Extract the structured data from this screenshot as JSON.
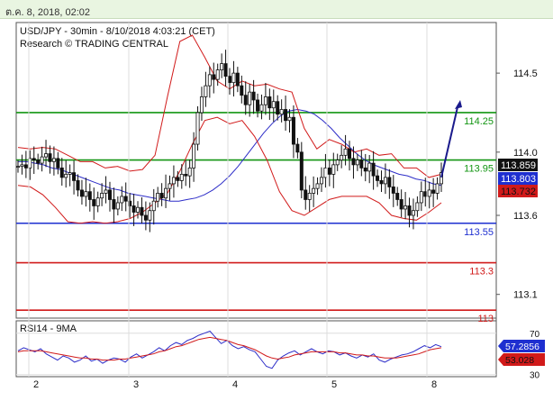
{
  "header": {
    "timestamp": "ต.ค. 8, 2018, 02:02"
  },
  "chart_data": [
    {
      "type": "candlestick",
      "title": "USD/JPY - 30min - 8/10/2018 4:03:21 (CET)",
      "subtitle": "Research © TRADING CENTRAL",
      "ylim": [
        112.95,
        114.82
      ],
      "x_tick_labels": [
        "2",
        "3",
        "4",
        "5",
        "8"
      ],
      "y_tick_labels": [
        {
          "value": 114.5,
          "label": "114.5"
        },
        {
          "value": 114.0,
          "label": "114.0"
        },
        {
          "value": 113.6,
          "label": "113.6"
        },
        {
          "value": 113.1,
          "label": "113.1"
        }
      ],
      "levels": [
        {
          "value": 114.25,
          "label": "114.25",
          "color": "#129512"
        },
        {
          "value": 113.95,
          "label": "113.95",
          "color": "#129512"
        },
        {
          "value": 113.55,
          "label": "113.55",
          "color": "#1e2fd0"
        },
        {
          "value": 113.3,
          "label": "113.3",
          "color": "#d11a1a"
        },
        {
          "value": 113.0,
          "label": "113",
          "color": "#d11a1a"
        }
      ],
      "price_tags": [
        {
          "value": 113.859,
          "label": "113.859",
          "bg": "#111111",
          "fg": "#ffffff"
        },
        {
          "value": 113.803,
          "label": "113.803",
          "bg": "#1e2fd0",
          "fg": "#ffffff"
        },
        {
          "value": 113.732,
          "label": "113.732",
          "bg": "#d11a1a",
          "fg": "#111111"
        }
      ],
      "closes": [
        113.91,
        113.92,
        113.9,
        113.96,
        113.95,
        113.93,
        113.97,
        113.99,
        113.94,
        113.96,
        113.9,
        113.84,
        113.86,
        113.87,
        113.82,
        113.76,
        113.72,
        113.75,
        113.7,
        113.66,
        113.71,
        113.74,
        113.76,
        113.7,
        113.64,
        113.68,
        113.72,
        113.69,
        113.66,
        113.62,
        113.65,
        113.6,
        113.57,
        113.63,
        113.69,
        113.74,
        113.71,
        113.77,
        113.8,
        113.84,
        113.82,
        113.86,
        113.85,
        113.9,
        114.05,
        114.25,
        114.35,
        114.42,
        114.49,
        114.46,
        114.52,
        114.56,
        114.48,
        114.44,
        114.5,
        114.42,
        114.36,
        114.3,
        114.38,
        114.33,
        114.26,
        114.3,
        114.35,
        114.28,
        114.32,
        114.24,
        114.27,
        114.2,
        114.22,
        114.05,
        114.0,
        113.76,
        113.7,
        113.74,
        113.77,
        113.8,
        113.84,
        113.9,
        113.86,
        113.92,
        113.95,
        113.98,
        114.02,
        113.96,
        113.92,
        113.95,
        113.9,
        113.88,
        113.93,
        113.85,
        113.82,
        113.8,
        113.84,
        113.78,
        113.74,
        113.7,
        113.64,
        113.66,
        113.6,
        113.63,
        113.68,
        113.75,
        113.72,
        113.76,
        113.74,
        113.8,
        113.87
      ],
      "series": [
        {
          "name": "",
          "color": "#2d2dc8",
          "values": [
            113.94,
            113.94,
            113.93,
            113.92,
            113.9,
            113.89,
            113.87,
            113.85,
            113.83,
            113.81,
            113.79,
            113.77,
            113.76,
            113.74,
            113.73,
            113.72,
            113.71,
            113.7,
            113.69,
            113.69,
            113.7,
            113.71,
            113.73,
            113.76,
            113.8,
            113.85,
            113.91,
            113.98,
            114.05,
            114.12,
            114.18,
            114.23,
            114.26,
            114.27,
            114.26,
            114.24,
            114.2,
            114.15,
            114.09,
            114.04,
            113.99,
            113.95,
            113.92,
            113.9,
            113.88,
            113.86,
            113.85,
            113.83,
            113.82,
            113.8,
            113.79
          ]
        },
        {
          "name": "",
          "color": "#d11a1a",
          "values": [
            114.03,
            114.02,
            114.03,
            114.02,
            113.98,
            113.94,
            113.94,
            113.9,
            113.91,
            113.88,
            113.89,
            113.98,
            114.35,
            114.7,
            114.74,
            114.6,
            114.45,
            114.4,
            114.45,
            114.42,
            114.43,
            114.4,
            114.38,
            114.15,
            114.02,
            114.08,
            114.05,
            114.0,
            114.02,
            113.98,
            113.99,
            113.9,
            113.9,
            113.84,
            113.86
          ]
        },
        {
          "name": "",
          "color": "#d11a1a",
          "values": [
            113.79,
            113.78,
            113.73,
            113.65,
            113.56,
            113.55,
            113.56,
            113.55,
            113.56,
            113.58,
            113.62,
            113.68,
            113.74,
            113.88,
            114.05,
            114.2,
            114.22,
            114.18,
            114.2,
            114.1,
            113.95,
            113.75,
            113.63,
            113.6,
            113.65,
            113.7,
            113.72,
            113.72,
            113.72,
            113.68,
            113.6,
            113.58,
            113.57,
            113.62,
            113.68
          ]
        }
      ],
      "arrow": {
        "from": 113.84,
        "to": 114.25,
        "color": "#1a1a8c"
      }
    },
    {
      "type": "line",
      "title": "RSI14 - 9MA",
      "ylim": [
        28,
        82
      ],
      "y_tick_labels": [
        {
          "value": 70,
          "label": "70"
        },
        {
          "value": 30,
          "label": "30"
        }
      ],
      "price_tags": [
        {
          "value": 57.2856,
          "label": "57.2856",
          "bg": "#1e2fd0",
          "fg": "#ffffff"
        },
        {
          "value": 53.028,
          "label": "53.028",
          "bg": "#d11a1a",
          "fg": "#111111"
        }
      ],
      "series": [
        {
          "name": "",
          "color": "#2d2dc8",
          "values": [
            53,
            56,
            54,
            52,
            55,
            50,
            47,
            44,
            48,
            46,
            42,
            44,
            48,
            43,
            45,
            41,
            44,
            46,
            45,
            42,
            47,
            50,
            46,
            49,
            52,
            56,
            53,
            58,
            61,
            59,
            63,
            65,
            68,
            70,
            72,
            66,
            60,
            63,
            58,
            55,
            57,
            54,
            52,
            45,
            38,
            36,
            44,
            48,
            51,
            53,
            49,
            52,
            55,
            52,
            50,
            53,
            52,
            49,
            51,
            48,
            46,
            49,
            47,
            50,
            44,
            42,
            45,
            47,
            49,
            50,
            52,
            55,
            58,
            56,
            59,
            57
          ]
        },
        {
          "name": "",
          "color": "#d11a1a",
          "values": [
            52,
            53,
            53,
            53,
            53,
            52,
            51,
            50,
            49,
            48,
            47,
            46,
            46,
            45,
            45,
            44,
            44,
            44,
            45,
            45,
            46,
            47,
            48,
            49,
            50,
            52,
            53,
            55,
            57,
            58,
            60,
            62,
            64,
            65,
            66,
            65,
            64,
            63,
            61,
            59,
            58,
            56,
            54,
            51,
            48,
            46,
            45,
            46,
            47,
            49,
            50,
            51,
            52,
            52,
            52,
            52,
            52,
            51,
            51,
            50,
            49,
            49,
            48,
            48,
            47,
            46,
            46,
            46,
            47,
            48,
            49,
            50,
            52,
            54,
            55,
            56
          ]
        }
      ]
    }
  ]
}
